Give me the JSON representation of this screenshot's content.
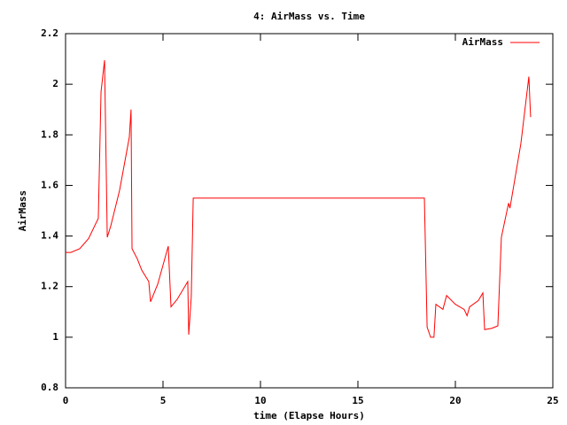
{
  "chart_data": {
    "type": "line",
    "title": "4: AirMass vs. Time",
    "x_label": "time (Elapse Hours)",
    "y_label": "AirMass",
    "xlim": [
      0,
      25
    ],
    "xticks": [
      0,
      5,
      10,
      15,
      20,
      25
    ],
    "ylim": [
      0.8,
      2.2
    ],
    "yticks": [
      0.8,
      1,
      1.2,
      1.4,
      1.6,
      1.8,
      2,
      2.2
    ],
    "legend": "top-right",
    "series": [
      {
        "name": "AirMass",
        "color": "#ff0000",
        "x": [
          0,
          0.27,
          0.73,
          1.18,
          1.68,
          1.82,
          2.0,
          2.14,
          2.32,
          2.77,
          3.27,
          3.36,
          3.41,
          3.68,
          3.91,
          4.27,
          4.36,
          4.73,
          5.27,
          5.41,
          5.73,
          6.27,
          6.32,
          6.45,
          6.55,
          18.41,
          18.55,
          18.73,
          18.9,
          19.0,
          19.36,
          19.55,
          20.0,
          20.45,
          20.6,
          20.73,
          21.18,
          21.41,
          21.5,
          21.86,
          22.18,
          22.36,
          22.73,
          22.8,
          23.36,
          23.77,
          23.86
        ],
        "values": [
          1.335,
          1.335,
          1.35,
          1.39,
          1.47,
          1.97,
          2.095,
          1.395,
          1.44,
          1.58,
          1.79,
          1.9,
          1.35,
          1.31,
          1.265,
          1.22,
          1.14,
          1.21,
          1.36,
          1.12,
          1.15,
          1.22,
          1.01,
          1.16,
          1.55,
          1.55,
          1.04,
          1.0,
          1.0,
          1.13,
          1.11,
          1.165,
          1.13,
          1.11,
          1.085,
          1.12,
          1.145,
          1.175,
          1.03,
          1.035,
          1.045,
          1.395,
          1.53,
          1.51,
          1.765,
          2.03,
          1.87
        ]
      }
    ]
  }
}
